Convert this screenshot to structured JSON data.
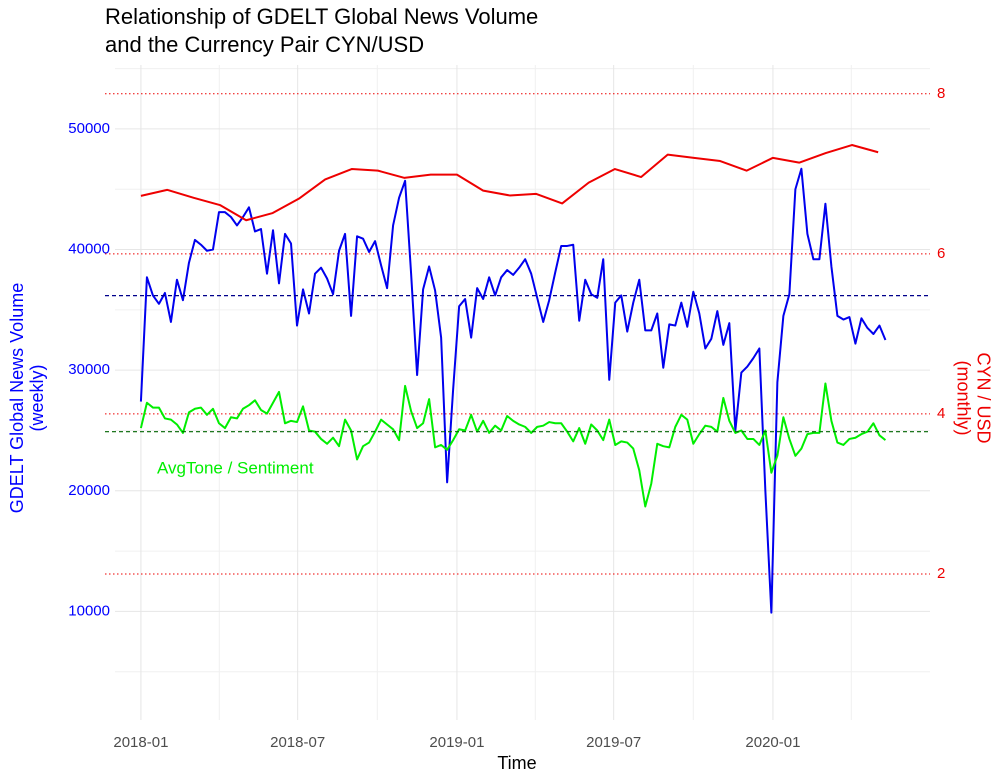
{
  "chart_data": {
    "type": "line",
    "title": [
      "Relationship of GDELT Global News Volume",
      "and the Currency Pair CYN/USD"
    ],
    "x_label": "Time",
    "y_label": [
      "GDELT Global News Volume",
      "(weekly)"
    ],
    "y2_label": [
      "CYN / USD",
      "(monthly)"
    ],
    "xlim": [
      2017.918,
      2020.497
    ],
    "xticks": [
      {
        "value": 2018,
        "label": "2018-01"
      },
      {
        "value": 2018.496,
        "label": "2018-07"
      },
      {
        "value": 2019,
        "label": "2019-01"
      },
      {
        "value": 2019.496,
        "label": "2019-07"
      },
      {
        "value": 2020,
        "label": "2020-01"
      }
    ],
    "ylim": [
      1000,
      55300
    ],
    "yticks": [
      10000,
      20000,
      30000,
      40000,
      50000
    ],
    "y2lim": [
      0.175,
      8.36
    ],
    "y2ticks": [
      2,
      4,
      6,
      8
    ],
    "grid": true,
    "y_color": "#0000ff",
    "y2_color": "#ee0000",
    "hlines": [
      {
        "value": 36180,
        "color": "#00008b"
      },
      {
        "value": 24900,
        "color": "#006400"
      }
    ],
    "series": [
      {
        "color": "#0000ee",
        "x": [
          2018,
          2018.019,
          2018.038,
          2018.057,
          2018.076,
          2018.095,
          2018.114,
          2018.133,
          2018.152,
          2018.171,
          2018.19,
          2018.209,
          2018.228,
          2018.247,
          2018.266,
          2018.285,
          2018.304,
          2018.323,
          2018.342,
          2018.361,
          2018.38,
          2018.399,
          2018.418,
          2018.437,
          2018.456,
          2018.475,
          2018.494,
          2018.513,
          2018.532,
          2018.551,
          2018.57,
          2018.589,
          2018.608,
          2018.627,
          2018.646,
          2018.665,
          2018.684,
          2018.703,
          2018.722,
          2018.741,
          2018.76,
          2018.779,
          2018.798,
          2018.817,
          2018.836,
          2018.855,
          2018.874,
          2018.893,
          2018.912,
          2018.931,
          2018.95,
          2018.969,
          2018.988,
          2019.007,
          2019.026,
          2019.045,
          2019.064,
          2019.083,
          2019.102,
          2019.121,
          2019.14,
          2019.159,
          2019.178,
          2019.197,
          2019.216,
          2019.235,
          2019.254,
          2019.273,
          2019.292,
          2019.311,
          2019.33,
          2019.349,
          2019.368,
          2019.387,
          2019.406,
          2019.425,
          2019.444,
          2019.463,
          2019.482,
          2019.501,
          2019.52,
          2019.539,
          2019.558,
          2019.577,
          2019.596,
          2019.615,
          2019.634,
          2019.653,
          2019.672,
          2019.691,
          2019.71,
          2019.729,
          2019.748,
          2019.767,
          2019.786,
          2019.805,
          2019.824,
          2019.843,
          2019.862,
          2019.881,
          2019.9,
          2019.919,
          2019.938,
          2019.957,
          2019.976,
          2019.995,
          2020.014,
          2020.033,
          2020.052,
          2020.071,
          2020.09,
          2020.109,
          2020.128,
          2020.147,
          2020.166,
          2020.185,
          2020.204,
          2020.223,
          2020.242,
          2020.261,
          2020.28,
          2020.299,
          2020.318,
          2020.337,
          2020.356
        ],
        "values": [
          27400,
          37700,
          36200,
          35500,
          36400,
          34000,
          37500,
          35800,
          38900,
          40800,
          40400,
          39900,
          40000,
          43100,
          43100,
          42700,
          42000,
          42700,
          43500,
          41500,
          41700,
          38000,
          41600,
          37200,
          41300,
          40500,
          33700,
          36700,
          34700,
          38000,
          38500,
          37600,
          36300,
          39900,
          41300,
          34500,
          41100,
          40900,
          39800,
          40700,
          38700,
          36800,
          42000,
          44300,
          45700,
          38000,
          29600,
          36700,
          38600,
          36600,
          32700,
          20700,
          28400,
          35300,
          35900,
          32700,
          36800,
          35900,
          37700,
          36200,
          37700,
          38300,
          37900,
          38500,
          39200,
          38000,
          36000,
          34000,
          35800,
          38100,
          40300,
          40300,
          40400,
          34100,
          37500,
          36300,
          36000,
          39200,
          29200,
          35600,
          36200,
          33200,
          35600,
          37500,
          33300,
          33300,
          34700,
          30200,
          33800,
          33700,
          35600,
          33600,
          36500,
          34700,
          31800,
          32600,
          34900,
          32100,
          33900,
          25000,
          29800,
          30300,
          31000,
          31800,
          20000,
          9900,
          29000,
          34500,
          36300,
          45000,
          46700,
          41300,
          39200,
          39200,
          43800,
          38600,
          34500,
          34200,
          34400,
          32200,
          34300,
          33500,
          33000,
          33700,
          32500
        ]
      },
      {
        "name": "AvgTone / Sentiment",
        "color": "#00ee00",
        "x": [
          2018,
          2018.019,
          2018.038,
          2018.057,
          2018.076,
          2018.095,
          2018.114,
          2018.133,
          2018.152,
          2018.171,
          2018.19,
          2018.209,
          2018.228,
          2018.247,
          2018.266,
          2018.285,
          2018.304,
          2018.323,
          2018.342,
          2018.361,
          2018.38,
          2018.399,
          2018.418,
          2018.437,
          2018.456,
          2018.475,
          2018.494,
          2018.513,
          2018.532,
          2018.551,
          2018.57,
          2018.589,
          2018.608,
          2018.627,
          2018.646,
          2018.665,
          2018.684,
          2018.703,
          2018.722,
          2018.741,
          2018.76,
          2018.779,
          2018.798,
          2018.817,
          2018.836,
          2018.855,
          2018.874,
          2018.893,
          2018.912,
          2018.931,
          2018.95,
          2018.969,
          2018.988,
          2019.007,
          2019.026,
          2019.045,
          2019.064,
          2019.083,
          2019.102,
          2019.121,
          2019.14,
          2019.159,
          2019.178,
          2019.197,
          2019.216,
          2019.235,
          2019.254,
          2019.273,
          2019.292,
          2019.311,
          2019.33,
          2019.349,
          2019.368,
          2019.387,
          2019.406,
          2019.425,
          2019.444,
          2019.463,
          2019.482,
          2019.501,
          2019.52,
          2019.539,
          2019.558,
          2019.577,
          2019.596,
          2019.615,
          2019.634,
          2019.653,
          2019.672,
          2019.691,
          2019.71,
          2019.729,
          2019.748,
          2019.767,
          2019.786,
          2019.805,
          2019.824,
          2019.843,
          2019.862,
          2019.881,
          2019.9,
          2019.919,
          2019.938,
          2019.957,
          2019.976,
          2019.995,
          2020.014,
          2020.033,
          2020.052,
          2020.071,
          2020.09,
          2020.109,
          2020.128,
          2020.147,
          2020.166,
          2020.185,
          2020.204,
          2020.223,
          2020.242,
          2020.261,
          2020.28,
          2020.299,
          2020.318,
          2020.337,
          2020.356
        ],
        "values": [
          25200,
          27300,
          26900,
          26900,
          26000,
          25900,
          25500,
          24800,
          26500,
          26800,
          26900,
          26300,
          26800,
          25600,
          25200,
          26100,
          26000,
          26800,
          27100,
          27500,
          26700,
          26400,
          27300,
          28200,
          25600,
          25800,
          25700,
          27000,
          25000,
          24900,
          24300,
          23900,
          24400,
          23700,
          25900,
          25000,
          22600,
          23700,
          24000,
          24900,
          25900,
          25500,
          25100,
          24200,
          28700,
          26600,
          25200,
          25600,
          27600,
          23600,
          23800,
          23400,
          24200,
          25100,
          25000,
          26300,
          24900,
          25800,
          24800,
          25400,
          25000,
          26200,
          25800,
          25500,
          25300,
          24800,
          25300,
          25400,
          25700,
          25600,
          25600,
          24900,
          24100,
          25200,
          23900,
          25500,
          25000,
          24200,
          25900,
          23800,
          24100,
          24000,
          23500,
          21700,
          18700,
          20600,
          23900,
          23700,
          23600,
          25300,
          26300,
          25900,
          23900,
          24700,
          25400,
          25300,
          24900,
          27700,
          25800,
          24800,
          25000,
          24300,
          24300,
          23800,
          25000,
          21500,
          22900,
          26100,
          24300,
          22900,
          23500,
          24700,
          24800,
          24800,
          28900,
          25800,
          24000,
          23800,
          24300,
          24400,
          24700,
          24900,
          25600,
          24600,
          24200
        ]
      },
      {
        "color": "#ee0000",
        "axis": "y2",
        "x": [
          2018,
          2018.083,
          2018.167,
          2018.25,
          2018.333,
          2018.417,
          2018.5,
          2018.583,
          2018.667,
          2018.75,
          2018.833,
          2018.917,
          2019,
          2019.083,
          2019.167,
          2019.25,
          2019.333,
          2019.417,
          2019.5,
          2019.583,
          2019.667,
          2019.75,
          2019.833,
          2019.917,
          2020,
          2020.083,
          2020.167,
          2020.25,
          2020.333
        ],
        "values": [
          6.725,
          6.8,
          6.7,
          6.61,
          6.42,
          6.51,
          6.69,
          6.93,
          7.06,
          7.04,
          6.95,
          6.99,
          6.99,
          6.79,
          6.73,
          6.75,
          6.63,
          6.89,
          7.06,
          6.96,
          7.24,
          7.2,
          7.16,
          7.04,
          7.2,
          7.14,
          7.26,
          7.36,
          7.27
        ]
      }
    ]
  }
}
